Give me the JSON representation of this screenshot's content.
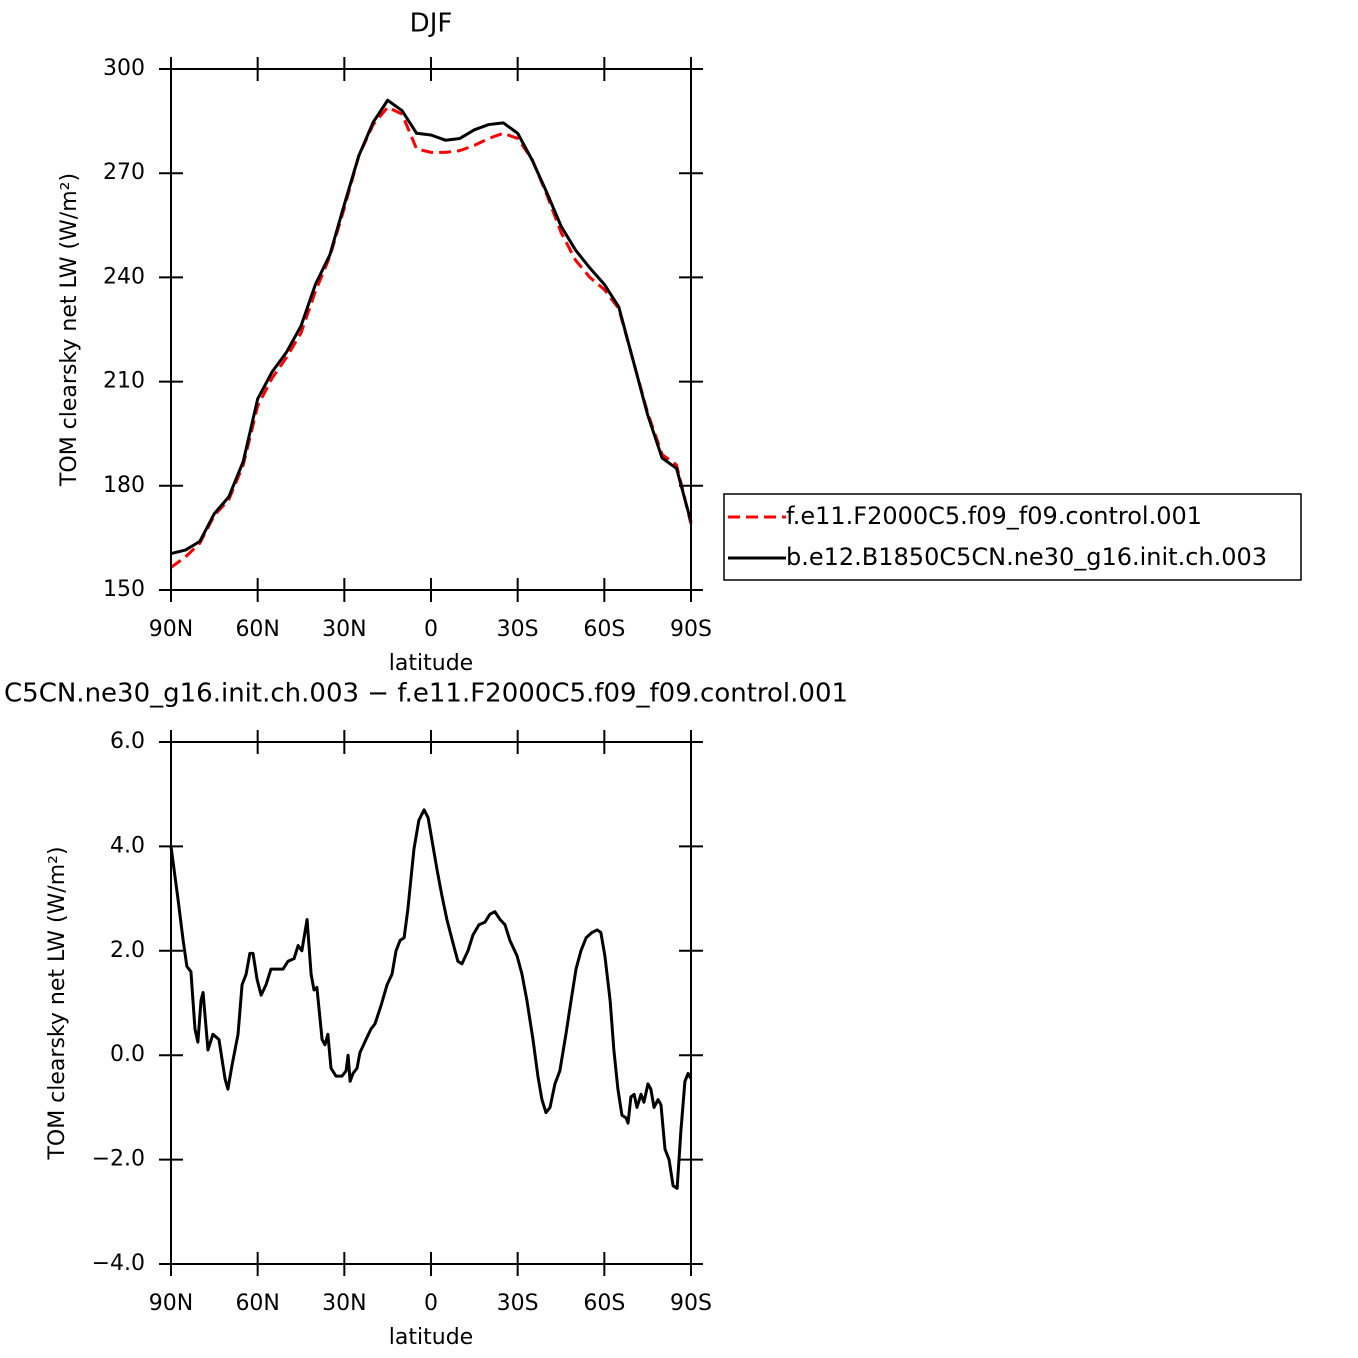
{
  "chart_data": [
    {
      "type": "line",
      "title": "DJF",
      "xlabel": "latitude",
      "ylabel": "TOM clearsky net LW (W/m²)",
      "xlim": [
        90,
        -90
      ],
      "ylim": [
        150,
        300
      ],
      "xticks": [
        {
          "value": 90,
          "label": "90N"
        },
        {
          "value": 60,
          "label": "60N"
        },
        {
          "value": 30,
          "label": "30N"
        },
        0,
        {
          "value": -30,
          "label": "30S"
        },
        {
          "value": -60,
          "label": "60S"
        },
        {
          "value": -90,
          "label": "90S"
        }
      ],
      "yticks": [
        150,
        180,
        210,
        240,
        270,
        300
      ],
      "x": [
        90,
        85,
        80,
        75,
        70,
        65,
        60,
        55,
        50,
        45,
        40,
        35,
        30,
        25,
        20,
        15,
        10,
        5,
        0,
        -5,
        -10,
        -15,
        -20,
        -25,
        -30,
        -35,
        -40,
        -45,
        -50,
        -55,
        -60,
        -65,
        -70,
        -75,
        -80,
        -85,
        -90
      ],
      "legend": "outside-right",
      "series": [
        {
          "name": "f.e11.F2000C5.f09_f09.control.001",
          "color": "#ff0000",
          "dash": true,
          "values": [
            156.5,
            159.5,
            163.5,
            171.5,
            176,
            186,
            203,
            211,
            217,
            224,
            236,
            246,
            260,
            275,
            284,
            289,
            287,
            277,
            276,
            276,
            276.5,
            278,
            280,
            281.5,
            280,
            274,
            264,
            253,
            245,
            240,
            236.5,
            231,
            216,
            201,
            189,
            186,
            169
          ]
        },
        {
          "name": "b.e12.B1850C5CN.ne30_g16.init.ch.003",
          "color": "#000000",
          "dash": false,
          "values": [
            160.5,
            161.5,
            164,
            172,
            176.8,
            187,
            205,
            212.8,
            218.5,
            226,
            238,
            246.5,
            261,
            275,
            284.7,
            291,
            288,
            281.5,
            281,
            279.5,
            280,
            282.5,
            284,
            284.5,
            281.5,
            273.8,
            264.6,
            254.8,
            247.9,
            242.7,
            238,
            231.5,
            216,
            200.4,
            188,
            185,
            169.6
          ]
        }
      ]
    },
    {
      "type": "line",
      "title": "C5CN.ne30_g16.init.ch.003 − f.e11.F2000C5.f09_f09.control.001",
      "xlabel": "latitude",
      "ylabel": "TOM clearsky net LW (W/m²)",
      "xlim": [
        90,
        -90
      ],
      "ylim": [
        -4,
        6
      ],
      "xticks": [
        {
          "value": 90,
          "label": "90N"
        },
        {
          "value": 60,
          "label": "60N"
        },
        {
          "value": 30,
          "label": "30N"
        },
        0,
        {
          "value": -30,
          "label": "30S"
        },
        {
          "value": -60,
          "label": "60S"
        },
        {
          "value": -90,
          "label": "90S"
        }
      ],
      "yticks": [
        {
          "value": -4,
          "label": "−4.0"
        },
        {
          "value": -2,
          "label": "−2.0"
        },
        {
          "value": 0,
          "label": "0.0"
        },
        {
          "value": 2,
          "label": "2.0"
        },
        {
          "value": 4,
          "label": "4.0"
        },
        {
          "value": 6,
          "label": "6.0"
        }
      ],
      "x": [
        90,
        87.6,
        85.8,
        84.5,
        83.1,
        81.7,
        80.7,
        79.6,
        78.9,
        77.2,
        75.5,
        73.4,
        71.3,
        70.3,
        68.9,
        66.8,
        65.4,
        64.0,
        62.7,
        61.6,
        60.2,
        58.8,
        57.1,
        55.4,
        53.7,
        51.2,
        49.5,
        47.4,
        46.0,
        44.7,
        42.9,
        41.5,
        40.5,
        39.5,
        37.7,
        36.7,
        35.7,
        34.6,
        32.9,
        30.8,
        29.4,
        28.7,
        28.0,
        27.0,
        25.6,
        24.6,
        22.5,
        20.8,
        19.4,
        17.3,
        15.2,
        13.5,
        12.1,
        10.7,
        9.3,
        8.0,
        5.9,
        4.2,
        2.4,
        1.0,
        -0.7,
        -2.1,
        -3.8,
        -5.5,
        -7.6,
        -9.3,
        -10.7,
        -12.8,
        -14.5,
        -16.6,
        -18.7,
        -20.4,
        -22.1,
        -23.9,
        -25.6,
        -27.3,
        -29.8,
        -31.5,
        -33.2,
        -35.3,
        -37.0,
        -38.4,
        -39.8,
        -41.2,
        -42.9,
        -44.6,
        -46.7,
        -48.5,
        -50.2,
        -51.9,
        -53.7,
        -55.7,
        -57.5,
        -58.8,
        -60.2,
        -62.0,
        -63.3,
        -64.7,
        -66.1,
        -67.5,
        -68.2,
        -69.2,
        -70.3,
        -71.3,
        -72.7,
        -73.7,
        -75.1,
        -76.1,
        -77.2,
        -78.6,
        -79.6,
        -81.0,
        -82.4,
        -83.8,
        -85.2,
        -86.5,
        -87.9,
        -89.0,
        -90.0
      ],
      "series": [
        {
          "color": "#000000",
          "dash": false,
          "values": [
            4.0,
            3.0,
            2.2,
            1.7,
            1.6,
            0.5,
            0.25,
            1.05,
            1.2,
            0.1,
            0.4,
            0.3,
            -0.45,
            -0.65,
            -0.2,
            0.4,
            1.35,
            1.55,
            1.95,
            1.95,
            1.45,
            1.15,
            1.35,
            1.65,
            1.65,
            1.65,
            1.8,
            1.85,
            2.1,
            2.0,
            2.6,
            1.55,
            1.25,
            1.3,
            0.3,
            0.2,
            0.4,
            -0.25,
            -0.4,
            -0.4,
            -0.3,
            0,
            -0.5,
            -0.35,
            -0.25,
            0.05,
            0.3,
            0.5,
            0.6,
            0.95,
            1.35,
            1.55,
            2.0,
            2.2,
            2.25,
            2.8,
            3.95,
            4.5,
            4.7,
            4.55,
            4.0,
            3.55,
            3.05,
            2.6,
            2.15,
            1.8,
            1.75,
            2.0,
            2.3,
            2.5,
            2.55,
            2.7,
            2.75,
            2.6,
            2.5,
            2.2,
            1.9,
            1.55,
            1.05,
            0.3,
            -0.4,
            -0.85,
            -1.1,
            -1.0,
            -0.55,
            -0.3,
            0.4,
            1.05,
            1.65,
            2.0,
            2.25,
            2.35,
            2.4,
            2.35,
            1.9,
            1.05,
            0.1,
            -0.65,
            -1.15,
            -1.2,
            -1.3,
            -0.8,
            -0.75,
            -1.0,
            -0.75,
            -0.9,
            -0.55,
            -0.65,
            -1.0,
            -0.85,
            -0.95,
            -1.8,
            -2.0,
            -2.5,
            -2.55,
            -1.45,
            -0.5,
            -0.35,
            -0.45
          ]
        }
      ]
    }
  ]
}
